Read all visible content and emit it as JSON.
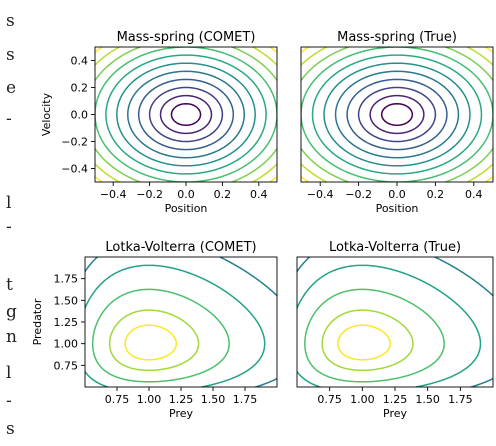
{
  "margin_text": [
    "s",
    "s",
    "e",
    "-",
    "l",
    "-",
    "t",
    "g",
    "n",
    "l",
    "-",
    "s"
  ],
  "chart_data": [
    {
      "type": "contour",
      "title": "Mass-spring (COMET)",
      "xlabel": "Position",
      "ylabel": "Velocity",
      "xlim": [
        -0.5,
        0.5
      ],
      "ylim": [
        -0.5,
        0.5
      ],
      "xticks": [
        "−0.4",
        "−0.2",
        "0.0",
        "0.2",
        "0.4"
      ],
      "yticks": [
        "0.4",
        "0.2",
        "0.0",
        "−0.2",
        "−0.4"
      ],
      "function": "x^2 + y^2",
      "levels": [
        0.0064,
        0.0196,
        0.04,
        0.0676,
        0.1024,
        0.1444,
        0.1936,
        0.25,
        0.3136,
        0.3844,
        0.4624
      ],
      "colormap": "viridis"
    },
    {
      "type": "contour",
      "title": "Mass-spring (True)",
      "xlabel": "Position",
      "ylabel": "",
      "xlim": [
        -0.5,
        0.5
      ],
      "ylim": [
        -0.5,
        0.5
      ],
      "xticks": [
        "−0.4",
        "−0.2",
        "0.0",
        "0.2",
        "0.4"
      ],
      "yticks": [],
      "function": "x^2 + y^2",
      "levels": [
        0.0064,
        0.0196,
        0.04,
        0.0676,
        0.1024,
        0.1444,
        0.1936,
        0.25,
        0.3136,
        0.3844,
        0.4624
      ],
      "colormap": "viridis"
    },
    {
      "type": "contour",
      "title": "Lotka-Volterra (COMET)",
      "xlabel": "Prey",
      "ylabel": "Predator",
      "xlim": [
        0.5,
        2.0
      ],
      "ylim": [
        0.5,
        2.0
      ],
      "xticks": [
        "0.75",
        "1.00",
        "1.25",
        "1.50",
        "1.75"
      ],
      "yticks": [
        "1.75",
        "1.50",
        "1.25",
        "1.00",
        "0.75"
      ],
      "function": "x - ln(x) + y - ln(y)",
      "levels": [
        2.02,
        2.06,
        2.14,
        2.26,
        2.42,
        2.62,
        2.85,
        3.1
      ],
      "colormap": "viridis_r"
    },
    {
      "type": "contour",
      "title": "Lotka-Volterra (True)",
      "xlabel": "Prey",
      "ylabel": "",
      "xlim": [
        0.5,
        2.0
      ],
      "ylim": [
        0.5,
        2.0
      ],
      "xticks": [
        "0.75",
        "1.00",
        "1.25",
        "1.50",
        "1.75"
      ],
      "yticks": [],
      "function": "x - ln(x) + y - ln(y)",
      "levels": [
        2.02,
        2.06,
        2.14,
        2.26,
        2.42,
        2.62,
        2.85,
        3.1
      ],
      "colormap": "viridis_r"
    }
  ]
}
